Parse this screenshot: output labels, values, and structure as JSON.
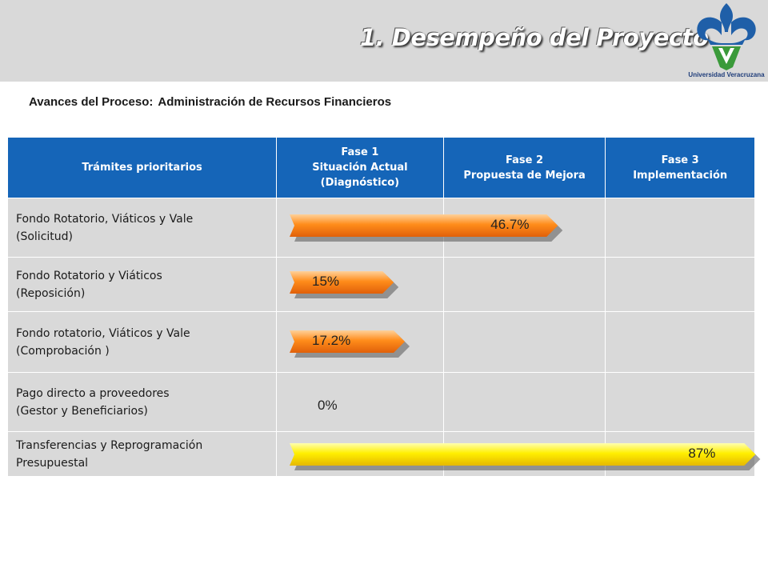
{
  "header": {
    "title": "1. Desempeño del Proyecto",
    "logo_icon": "fleur-de-lis-uv-logo-icon",
    "logo_caption": "Universidad Veracruzana",
    "logo_colors": {
      "blue": "#1f5fa8",
      "green": "#3a9a3a"
    }
  },
  "subtitle": {
    "label": "Avances del Proceso:",
    "value": "Administración de Recursos Financieros"
  },
  "table": {
    "headers": [
      {
        "lines": [
          "Trámites prioritarios"
        ]
      },
      {
        "lines": [
          "Fase 1",
          "Situación Actual",
          "(Diagnóstico)"
        ]
      },
      {
        "lines": [
          "Fase 2",
          "Propuesta de Mejora"
        ]
      },
      {
        "lines": [
          "Fase 3",
          "Implementación"
        ]
      }
    ],
    "rows": [
      {
        "lines": [
          "Fondo Rotatorio, Viáticos y Vale",
          "(Solicitud)"
        ],
        "progress_label": "46.7%",
        "progress": 46.7,
        "bar_color": "orange"
      },
      {
        "lines": [
          "Fondo Rotatorio y Viáticos",
          "(Reposición)"
        ],
        "progress_label": "15%",
        "progress": 15,
        "bar_color": "orange"
      },
      {
        "lines": [
          "Fondo rotatorio, Viáticos y Vale",
          "(Comprobación )"
        ],
        "progress_label": "17.2%",
        "progress": 17.2,
        "bar_color": "orange"
      },
      {
        "lines": [
          "Pago directo a proveedores",
          "(Gestor y Beneficiarios)"
        ],
        "progress_label": "0%",
        "progress": 0,
        "bar_color": "none"
      },
      {
        "lines": [
          "Transferencias y Reprogramación",
          "Presupuestal"
        ],
        "progress_label": "87%",
        "progress": 87,
        "bar_color": "yellow"
      }
    ]
  },
  "colors": {
    "header_bg": "#d9d9d9",
    "table_header_bg": "#1565b8",
    "row_bg": "#d9d9d9",
    "bar_orange_top": "#ffd199",
    "bar_orange_mid": "#ff8c1a",
    "bar_orange_bottom": "#e0600a",
    "bar_yellow_top": "#ffffb0",
    "bar_yellow_mid": "#ffef00",
    "bar_yellow_bottom": "#e6b800"
  }
}
